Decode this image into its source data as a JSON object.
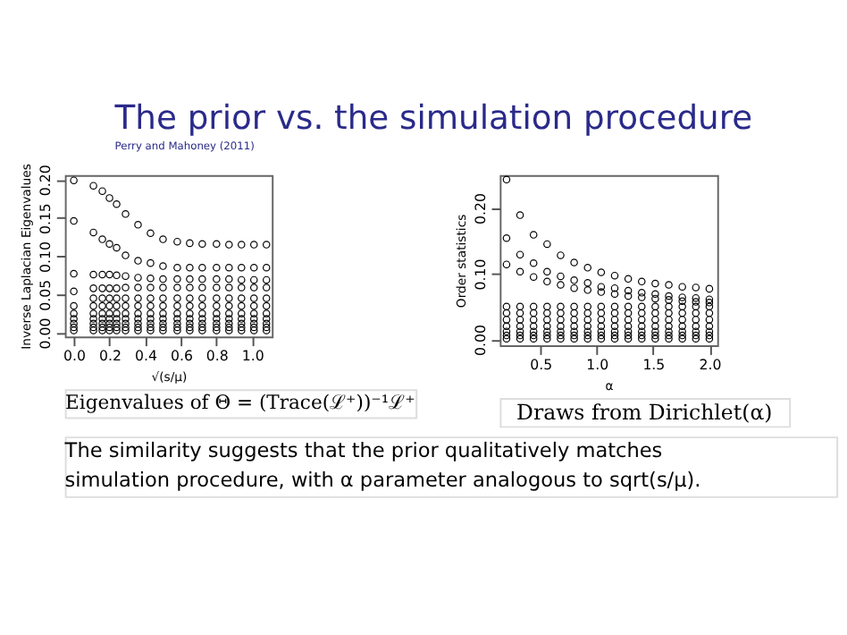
{
  "chart_data": [
    {
      "type": "scatter",
      "title": "The prior vs. the simulation procedure",
      "subtitle": "Perry and Mahoney (2011)",
      "xlabel": "√(s/μ)",
      "ylabel": "Inverse Laplacian Eigenvalues",
      "annotations": [
        "Eigenvalues of Θ = (Trace(ℒ⁺))⁻¹ℒ⁺"
      ],
      "marker": "circle",
      "grid": false,
      "x": [
        0,
        0.11,
        0.16,
        0.2,
        0.24,
        0.29,
        0.36,
        0.43,
        0.5,
        0.58,
        0.65,
        0.72,
        0.8,
        0.87,
        0.94,
        1.01,
        1.08
      ],
      "xlim": [
        -0.05,
        1.11
      ],
      "xticks": [
        {
          "value": 0,
          "label": "0.0"
        },
        0.2,
        0.4,
        0.6,
        0.8,
        {
          "value": 1,
          "label": "1.0"
        }
      ],
      "ylim": [
        -0.005,
        0.206
      ],
      "yticks": [
        {
          "value": 0,
          "label": "0.00"
        },
        0.05,
        {
          "value": 0.1,
          "label": "0.10"
        },
        0.15,
        {
          "value": 0.2,
          "label": "0.20"
        }
      ],
      "series": [
        {
          "color": "#000000",
          "values": [
            0.199,
            0.192,
            0.185,
            0.176,
            0.168,
            0.155,
            0.141,
            0.13,
            0.122,
            0.119,
            0.117,
            0.116,
            0.116,
            0.115,
            0.115,
            0.115,
            0.115
          ]
        },
        {
          "color": "#000000",
          "values": [
            0.146,
            0.131,
            0.122,
            0.116,
            0.111,
            0.101,
            0.094,
            0.091,
            0.087,
            0.085,
            0.085,
            0.085,
            0.085,
            0.085,
            0.085,
            0.085,
            0.085
          ]
        },
        {
          "color": "#000000",
          "values": [
            0.077,
            0.076,
            0.076,
            0.076,
            0.075,
            0.074,
            0.072,
            0.071,
            0.07,
            0.07,
            0.07,
            0.07,
            0.07,
            0.07,
            0.069,
            0.069,
            0.069
          ]
        },
        {
          "color": "#000000",
          "values": [
            0.054,
            0.058,
            0.058,
            0.058,
            0.058,
            0.059,
            0.059,
            0.059,
            0.059,
            0.059,
            0.059,
            0.059,
            0.059,
            0.059,
            0.059,
            0.059,
            0.059
          ]
        },
        {
          "color": "#000000",
          "values": [
            null,
            0.045,
            0.045,
            0.045,
            0.045,
            0.045,
            0.045,
            0.045,
            0.045,
            0.045,
            0.045,
            0.045,
            0.045,
            0.045,
            0.045,
            0.045,
            0.045
          ]
        },
        {
          "color": "#000000",
          "values": [
            0.035,
            0.035,
            0.035,
            0.035,
            0.035,
            0.035,
            0.035,
            0.035,
            0.035,
            0.035,
            0.035,
            0.035,
            0.035,
            0.035,
            0.035,
            0.035,
            0.035
          ]
        },
        {
          "color": "#000000",
          "values": [
            0.025,
            0.025,
            0.025,
            0.025,
            0.025,
            0.025,
            0.025,
            0.025,
            0.025,
            0.025,
            0.025,
            0.025,
            0.025,
            0.025,
            0.025,
            0.025,
            0.025
          ]
        },
        {
          "color": "#000000",
          "values": [
            0.018,
            0.018,
            0.018,
            0.018,
            0.018,
            0.018,
            0.018,
            0.018,
            0.018,
            0.018,
            0.018,
            0.018,
            0.018,
            0.018,
            0.018,
            0.018,
            0.018
          ]
        },
        {
          "color": "#000000",
          "values": [
            0.012,
            0.012,
            0.012,
            0.012,
            0.012,
            0.012,
            0.012,
            0.012,
            0.012,
            0.012,
            0.012,
            0.012,
            0.012,
            0.012,
            0.012,
            0.012,
            0.012
          ]
        },
        {
          "color": "#000000",
          "values": [
            0.007,
            0.007,
            0.007,
            0.007,
            0.007,
            0.007,
            0.007,
            0.007,
            0.007,
            0.007,
            0.007,
            0.007,
            0.007,
            0.007,
            0.007,
            0.007,
            0.007
          ]
        },
        {
          "color": "#000000",
          "values": [
            0.003,
            0.003,
            0.003,
            0.003,
            0.003,
            0.003,
            0.003,
            0.003,
            0.003,
            0.003,
            0.003,
            0.003,
            0.003,
            0.003,
            0.003,
            0.003,
            0.003
          ]
        }
      ]
    },
    {
      "type": "scatter",
      "xlabel": "α",
      "ylabel": "Order statistics",
      "annotations": [
        "Draws from Dirichlet(α)",
        "The similarity suggests that the prior qualitatively matches simulation procedure, with α parameter analogous to sqrt(s/μ)."
      ],
      "marker": "circle",
      "grid": false,
      "x": [
        0.2,
        0.32,
        0.44,
        0.56,
        0.68,
        0.8,
        0.92,
        1.04,
        1.16,
        1.28,
        1.4,
        1.52,
        1.64,
        1.76,
        1.88,
        2.0
      ],
      "xlim": [
        0.14,
        2.07
      ],
      "xticks": [
        0.5,
        {
          "value": 1,
          "label": "1.0"
        },
        1.5,
        {
          "value": 2,
          "label": "2.0"
        }
      ],
      "ylim": [
        -0.009,
        0.25
      ],
      "yticks": [
        {
          "value": 0,
          "label": "0.00"
        },
        {
          "value": 0.1,
          "label": "0.10"
        },
        {
          "value": 0.2,
          "label": "0.20"
        }
      ],
      "series": [
        {
          "color": "#000000",
          "values": [
            0.243,
            0.189,
            0.159,
            0.145,
            0.128,
            0.117,
            0.109,
            0.102,
            0.097,
            0.092,
            0.088,
            0.085,
            0.083,
            0.08,
            0.079,
            0.077
          ]
        },
        {
          "color": "#000000",
          "values": [
            0.154,
            0.129,
            0.116,
            0.103,
            0.096,
            0.09,
            0.086,
            0.08,
            0.078,
            0.074,
            0.071,
            0.069,
            0.066,
            0.064,
            0.063,
            0.061
          ]
        },
        {
          "color": "#000000",
          "values": [
            0.114,
            0.103,
            0.095,
            0.088,
            0.083,
            0.078,
            0.075,
            0.072,
            0.069,
            0.066,
            0.064,
            0.062,
            0.06,
            0.058,
            0.057,
            0.056
          ]
        },
        {
          "color": "#000000",
          "values": [
            0.05,
            0.05,
            0.05,
            0.05,
            0.05,
            0.05,
            0.05,
            0.05,
            0.05,
            0.05,
            0.05,
            0.05,
            0.05,
            0.05,
            0.05,
            0.05
          ]
        },
        {
          "color": "#000000",
          "values": [
            0.04,
            0.04,
            0.04,
            0.04,
            0.04,
            0.04,
            0.04,
            0.04,
            0.04,
            0.04,
            0.04,
            0.04,
            0.04,
            0.04,
            0.04,
            0.04
          ]
        },
        {
          "color": "#000000",
          "values": [
            0.03,
            0.03,
            0.03,
            0.03,
            0.03,
            0.03,
            0.03,
            0.03,
            0.03,
            0.03,
            0.03,
            0.03,
            0.03,
            0.03,
            0.03,
            0.03
          ]
        },
        {
          "color": "#000000",
          "values": [
            0.02,
            0.02,
            0.02,
            0.02,
            0.02,
            0.02,
            0.02,
            0.02,
            0.02,
            0.02,
            0.02,
            0.02,
            0.02,
            0.02,
            0.02,
            0.02
          ]
        },
        {
          "color": "#000000",
          "values": [
            0.012,
            0.012,
            0.012,
            0.012,
            0.012,
            0.012,
            0.012,
            0.012,
            0.012,
            0.012,
            0.012,
            0.012,
            0.012,
            0.012,
            0.012,
            0.012
          ]
        },
        {
          "color": "#000000",
          "values": [
            0.006,
            0.006,
            0.006,
            0.006,
            0.006,
            0.006,
            0.006,
            0.006,
            0.006,
            0.006,
            0.006,
            0.006,
            0.006,
            0.006,
            0.006,
            0.006
          ]
        },
        {
          "color": "#000000",
          "values": [
            0.001,
            0.001,
            0.001,
            0.001,
            0.001,
            0.001,
            0.001,
            0.001,
            0.001,
            0.001,
            0.001,
            0.001,
            0.001,
            0.001,
            0.001,
            0.001
          ]
        }
      ]
    }
  ]
}
